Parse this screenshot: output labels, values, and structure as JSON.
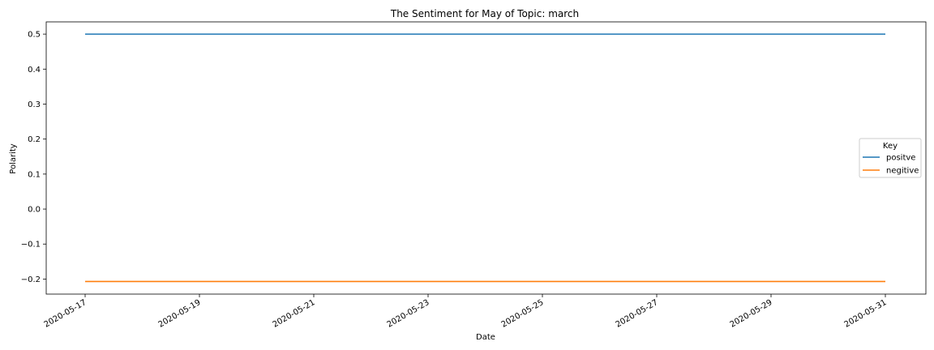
{
  "chart_data": {
    "type": "line",
    "title": "The Sentiment for May of Topic: march",
    "xlabel": "Date",
    "ylabel": "Polarity",
    "x": [
      "2020-05-17",
      "2020-05-31"
    ],
    "xticks": [
      "2020-05-17",
      "2020-05-19",
      "2020-05-21",
      "2020-05-23",
      "2020-05-25",
      "2020-05-27",
      "2020-05-29",
      "2020-05-31"
    ],
    "yticks": [
      0.5,
      0.4,
      0.3,
      0.2,
      0.1,
      0.0,
      -0.1,
      -0.2
    ],
    "ytick_labels": [
      "0.5",
      "0.4",
      "0.3",
      "0.2",
      "0.1",
      "0.0",
      "−0.1",
      "−0.2"
    ],
    "ylim": [
      -0.243,
      0.535
    ],
    "xlim": [
      "2020-05-16.3",
      "2020-05-31.7"
    ],
    "grid": false,
    "legend": {
      "title": "Key",
      "placement": "right"
    },
    "series": [
      {
        "name": "positve",
        "color": "#1f77b4",
        "values": [
          0.5,
          0.5
        ]
      },
      {
        "name": "negitive",
        "color": "#ff7f0e",
        "values": [
          -0.207,
          -0.207
        ]
      }
    ]
  }
}
